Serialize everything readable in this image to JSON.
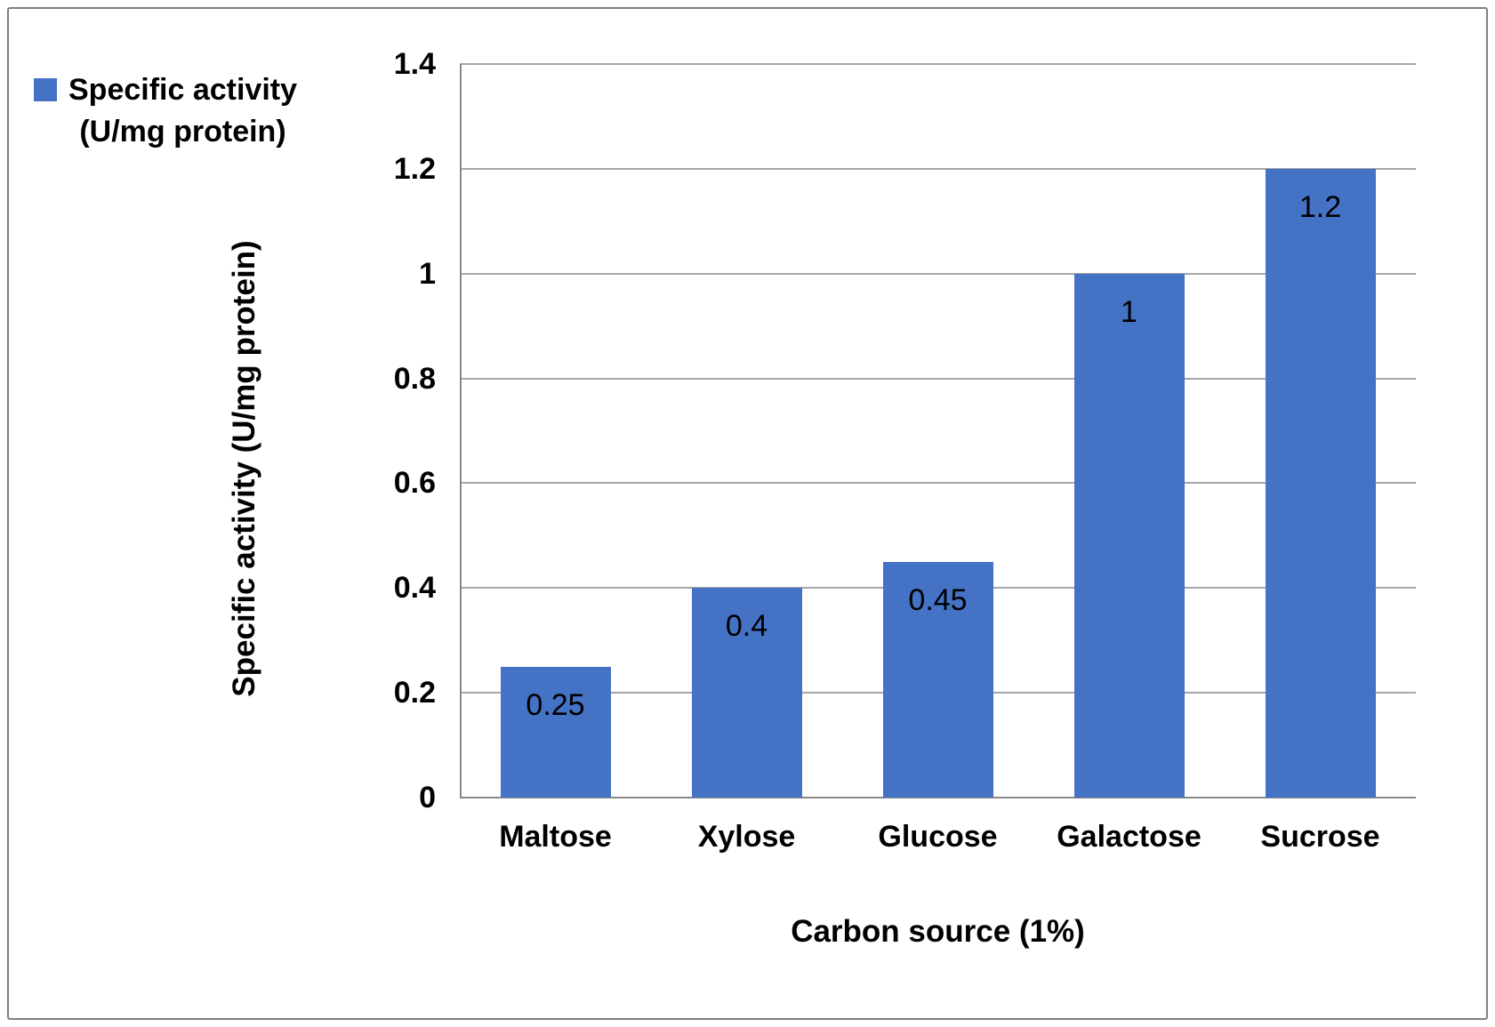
{
  "legend": {
    "lines": [
      "Specific activity",
      "(U/mg protein)"
    ]
  },
  "chart_data": {
    "type": "bar",
    "title": "",
    "categories": [
      "Maltose",
      "Xylose",
      "Glucose",
      "Galactose",
      "Sucrose"
    ],
    "values": [
      0.25,
      0.4,
      0.45,
      1,
      1.2
    ],
    "data_labels": [
      "0.25",
      "0.4",
      "0.45",
      "1",
      "1.2"
    ],
    "series_name": "Specific activity (U/mg protein)",
    "xlabel": "Carbon source (1%)",
    "ylabel": "Specific activity (U/mg protein)",
    "ylim": [
      0,
      1.4
    ],
    "ytick_step": 0.2,
    "ytick_labels": [
      "0",
      "0.2",
      "0.4",
      "0.6",
      "0.8",
      "1",
      "1.2",
      "1.4"
    ],
    "grid": true,
    "legend_position": "top-left",
    "colors": {
      "bar": "#4472c4",
      "gridline": "#a6a6a6",
      "axis": "#898989",
      "frame_border": "#7f7f7f",
      "text": "#000000",
      "background": "#ffffff"
    }
  }
}
